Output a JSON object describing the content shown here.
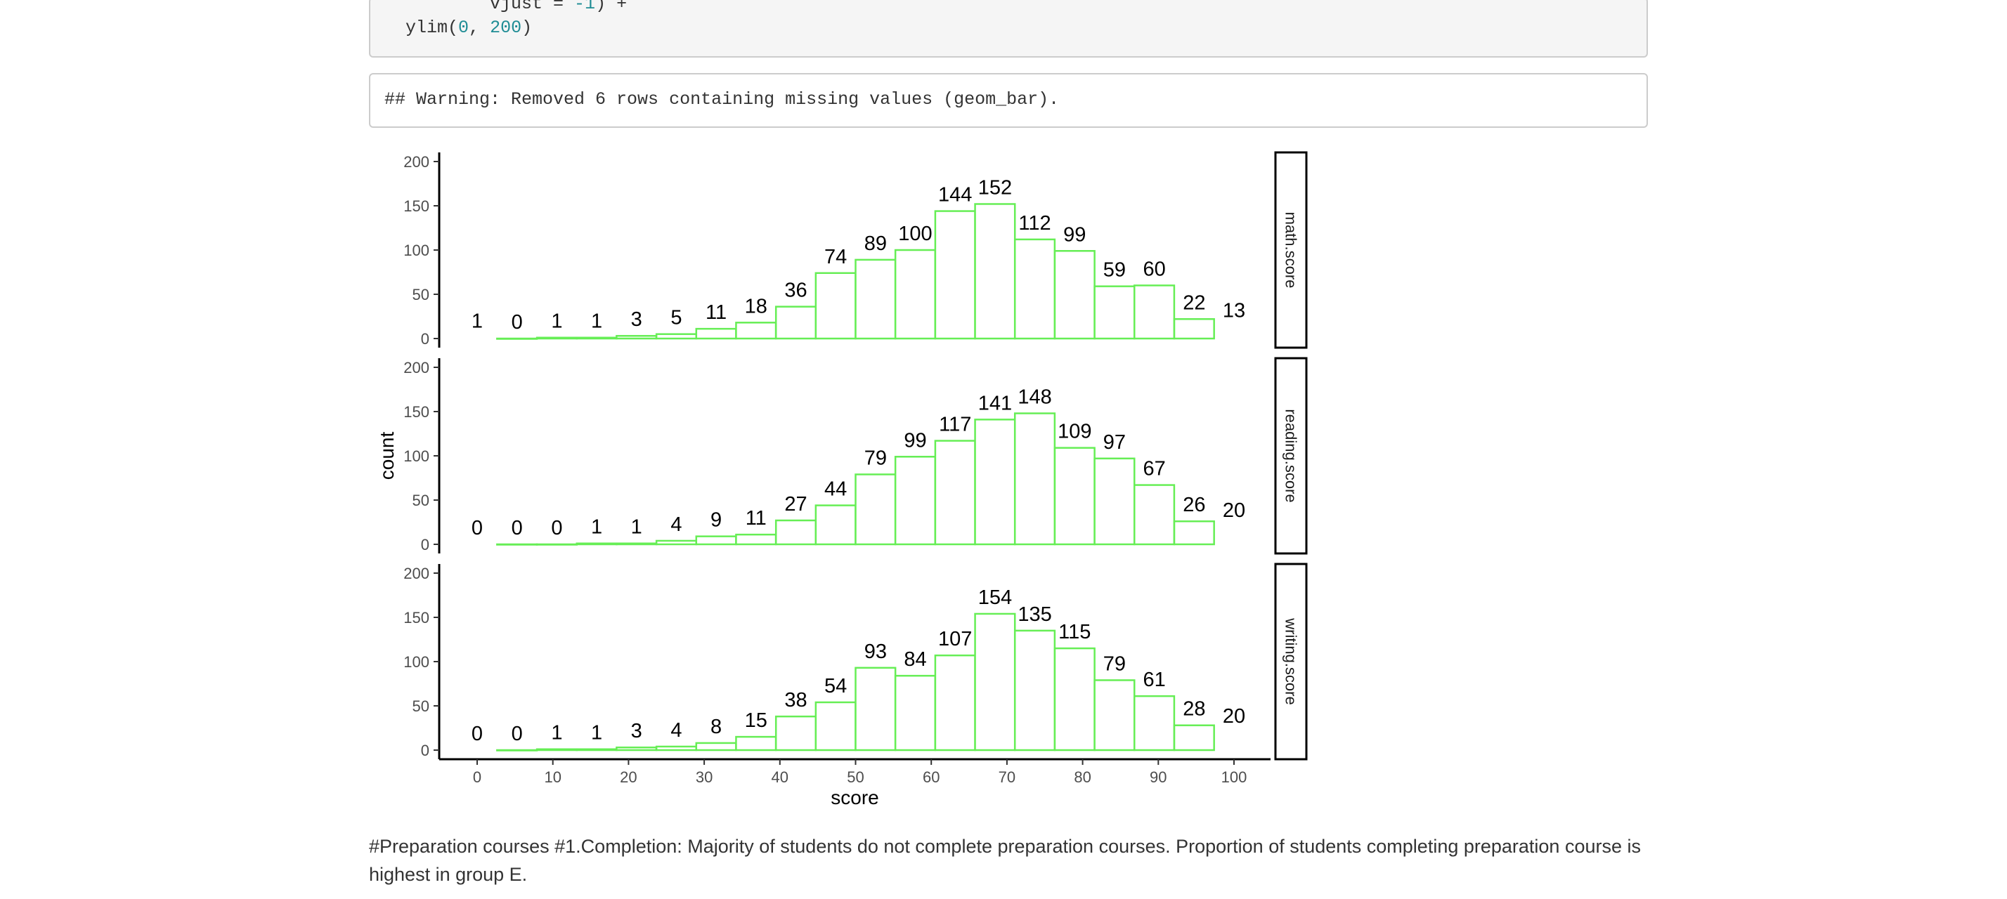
{
  "code": {
    "line1": {
      "prefix": "          vjust = ",
      "num": "-1",
      "suffix": ") +"
    },
    "line2": {
      "prefix": "  ylim(",
      "num1": "0",
      "sep": ", ",
      "num2": "200",
      "suffix": ")"
    }
  },
  "output": {
    "warning": "## Warning: Removed 6 rows containing missing values (geom_bar)."
  },
  "chart_data": {
    "type": "bar",
    "xlabel": "score",
    "ylabel": "count",
    "ylim": [
      0,
      200
    ],
    "xlim": [
      0,
      100
    ],
    "x_ticks": [
      0,
      10,
      20,
      30,
      40,
      50,
      60,
      70,
      80,
      90,
      100
    ],
    "y_ticks": [
      0,
      50,
      100,
      150,
      200
    ],
    "bin_width": 5.26,
    "bar_outline_color": "#66ee55",
    "bar_fill_color": "#ffffff",
    "grid": false,
    "facets": [
      {
        "strip_label": "math.score",
        "centers": [
          0,
          5.26,
          10.53,
          15.79,
          21.05,
          26.32,
          31.58,
          36.84,
          42.11,
          47.37,
          52.63,
          57.89,
          63.16,
          68.42,
          73.68,
          78.95,
          84.21,
          89.47,
          94.74,
          100
        ],
        "values": [
          1,
          0,
          1,
          1,
          3,
          5,
          11,
          18,
          36,
          74,
          89,
          100,
          144,
          152,
          112,
          99,
          59,
          60,
          22,
          13
        ],
        "labels": [
          "1",
          "0",
          "1",
          "1",
          "3",
          "5",
          "11",
          "18",
          "36",
          "74",
          "89",
          "100",
          "144",
          "152",
          "112",
          "99",
          "59",
          "60",
          "22",
          "13"
        ]
      },
      {
        "strip_label": "reading.score",
        "centers": [
          0,
          5.26,
          10.53,
          15.79,
          21.05,
          26.32,
          31.58,
          36.84,
          42.11,
          47.37,
          52.63,
          57.89,
          63.16,
          68.42,
          73.68,
          78.95,
          84.21,
          89.47,
          94.74,
          100
        ],
        "values": [
          0,
          0,
          0,
          1,
          1,
          4,
          9,
          11,
          27,
          44,
          79,
          99,
          117,
          141,
          148,
          109,
          97,
          67,
          26,
          20
        ],
        "labels": [
          "0",
          "0",
          "0",
          "1",
          "1",
          "4",
          "9",
          "11",
          "27",
          "44",
          "79",
          "99",
          "117",
          "141",
          "148",
          "109",
          "97",
          "67",
          "26",
          "20"
        ]
      },
      {
        "strip_label": "writing.score",
        "centers": [
          0,
          5.26,
          10.53,
          15.79,
          21.05,
          26.32,
          31.58,
          36.84,
          42.11,
          47.37,
          52.63,
          57.89,
          63.16,
          68.42,
          73.68,
          78.95,
          84.21,
          89.47,
          94.74,
          100
        ],
        "values": [
          0,
          0,
          1,
          1,
          3,
          4,
          8,
          15,
          38,
          54,
          93,
          84,
          107,
          154,
          135,
          115,
          79,
          61,
          28,
          20
        ],
        "labels": [
          "0",
          "0",
          "1",
          "1",
          "3",
          "4",
          "8",
          "15",
          "38",
          "54",
          "93",
          "84",
          "107",
          "154",
          "135",
          "115",
          "79",
          "61",
          "28",
          "20"
        ]
      }
    ]
  },
  "paragraph": "#Preparation courses #1.Completion: Majority of students do not complete preparation courses. Proportion of students completing preparation course is highest in group E."
}
